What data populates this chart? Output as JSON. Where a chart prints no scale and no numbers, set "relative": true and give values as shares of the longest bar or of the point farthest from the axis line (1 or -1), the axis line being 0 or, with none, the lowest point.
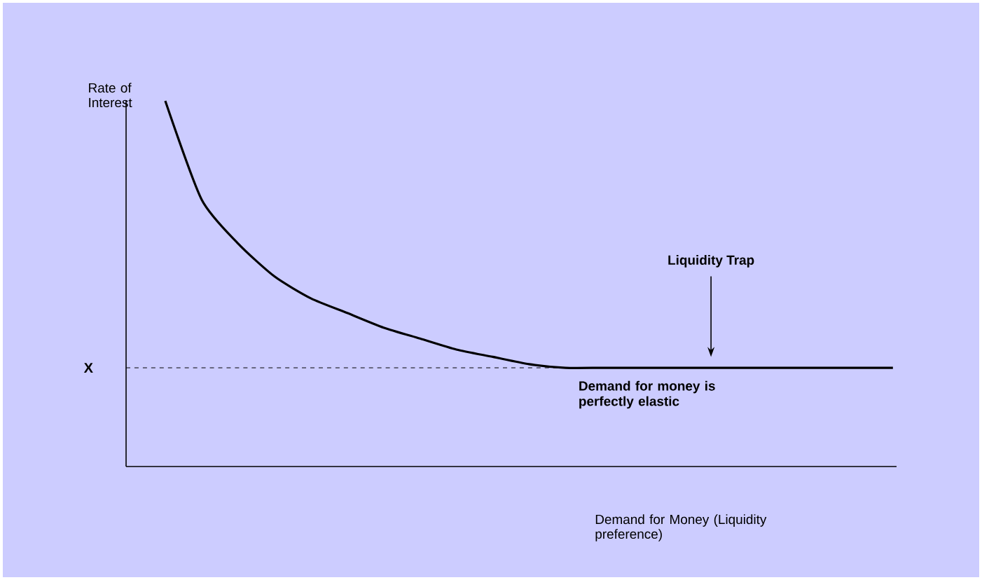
{
  "chart_data": {
    "type": "line",
    "relative": true,
    "ylabel": "Rate of Interest",
    "xlabel": "Demand for Money (Liquidity preference)",
    "categories": [
      null,
      null,
      null,
      null,
      null,
      null,
      null,
      null,
      null,
      null,
      null,
      null,
      null,
      null,
      null,
      null,
      null,
      null,
      null,
      null,
      null
    ],
    "series": [
      {
        "color": "#000000",
        "values": [
          1,
          0.73,
          0.61,
          0.52,
          0.46,
          0.42,
          0.38,
          0.35,
          0.32,
          0.3,
          0.28,
          0.27,
          0.27,
          0.27,
          0.27,
          0.27,
          0.27,
          0.27,
          0.27,
          0.27,
          0.27
        ]
      }
    ],
    "ref_lines": [
      {
        "axis": "y",
        "value": 0.27,
        "label": "X",
        "line_style": "dashed",
        "color": "#000000"
      }
    ],
    "annotations": [
      "Liquidity Trap",
      "Demand for money is perfectly elastic"
    ],
    "legend": false
  }
}
